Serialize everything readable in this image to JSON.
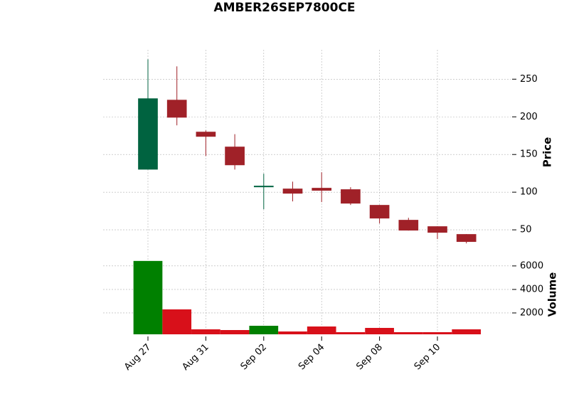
{
  "chart_data": {
    "type": "candlestick",
    "title": "AMBER26SEP7800CE",
    "categories": [
      "Aug 27",
      null,
      "Aug 31",
      null,
      "Sep 02",
      null,
      "Sep 04",
      null,
      "Sep 08",
      null,
      "Sep 10",
      null
    ],
    "open": [
      130,
      222.6,
      180.2,
      160.4,
      106.6,
      104.7,
      105.7,
      103.8,
      83,
      63.2,
      54.7,
      44.3
    ],
    "high": [
      276.4,
      267,
      182,
      177,
      124.5,
      114,
      126.4,
      106.6,
      83,
      66,
      54.7,
      44.3
    ],
    "low": [
      130,
      188.7,
      148,
      130,
      77.4,
      87.7,
      86.8,
      83,
      58.5,
      49,
      37.7,
      32
    ],
    "close": [
      224.5,
      199,
      173.6,
      135.8,
      108.5,
      98.1,
      102,
      84.9,
      65.1,
      49.1,
      46.2,
      34
    ],
    "volume": [
      6424,
      2303,
      606,
      545,
      909,
      424,
      848,
      364,
      727,
      364,
      364,
      606
    ],
    "up_color": "#006340",
    "down_color": "#a02128",
    "volume_up_color": "#008000",
    "volume_down_color": "#d8101a",
    "ylabel": "Price",
    "ylim": [
      18,
      289
    ],
    "yticks": [
      50,
      100,
      150,
      200,
      250
    ],
    "volume_ylabel": "Volume",
    "volume_ylim": [
      182,
      7020
    ],
    "volume_yticks": [
      2000,
      4000,
      6000
    ],
    "grid": true
  }
}
